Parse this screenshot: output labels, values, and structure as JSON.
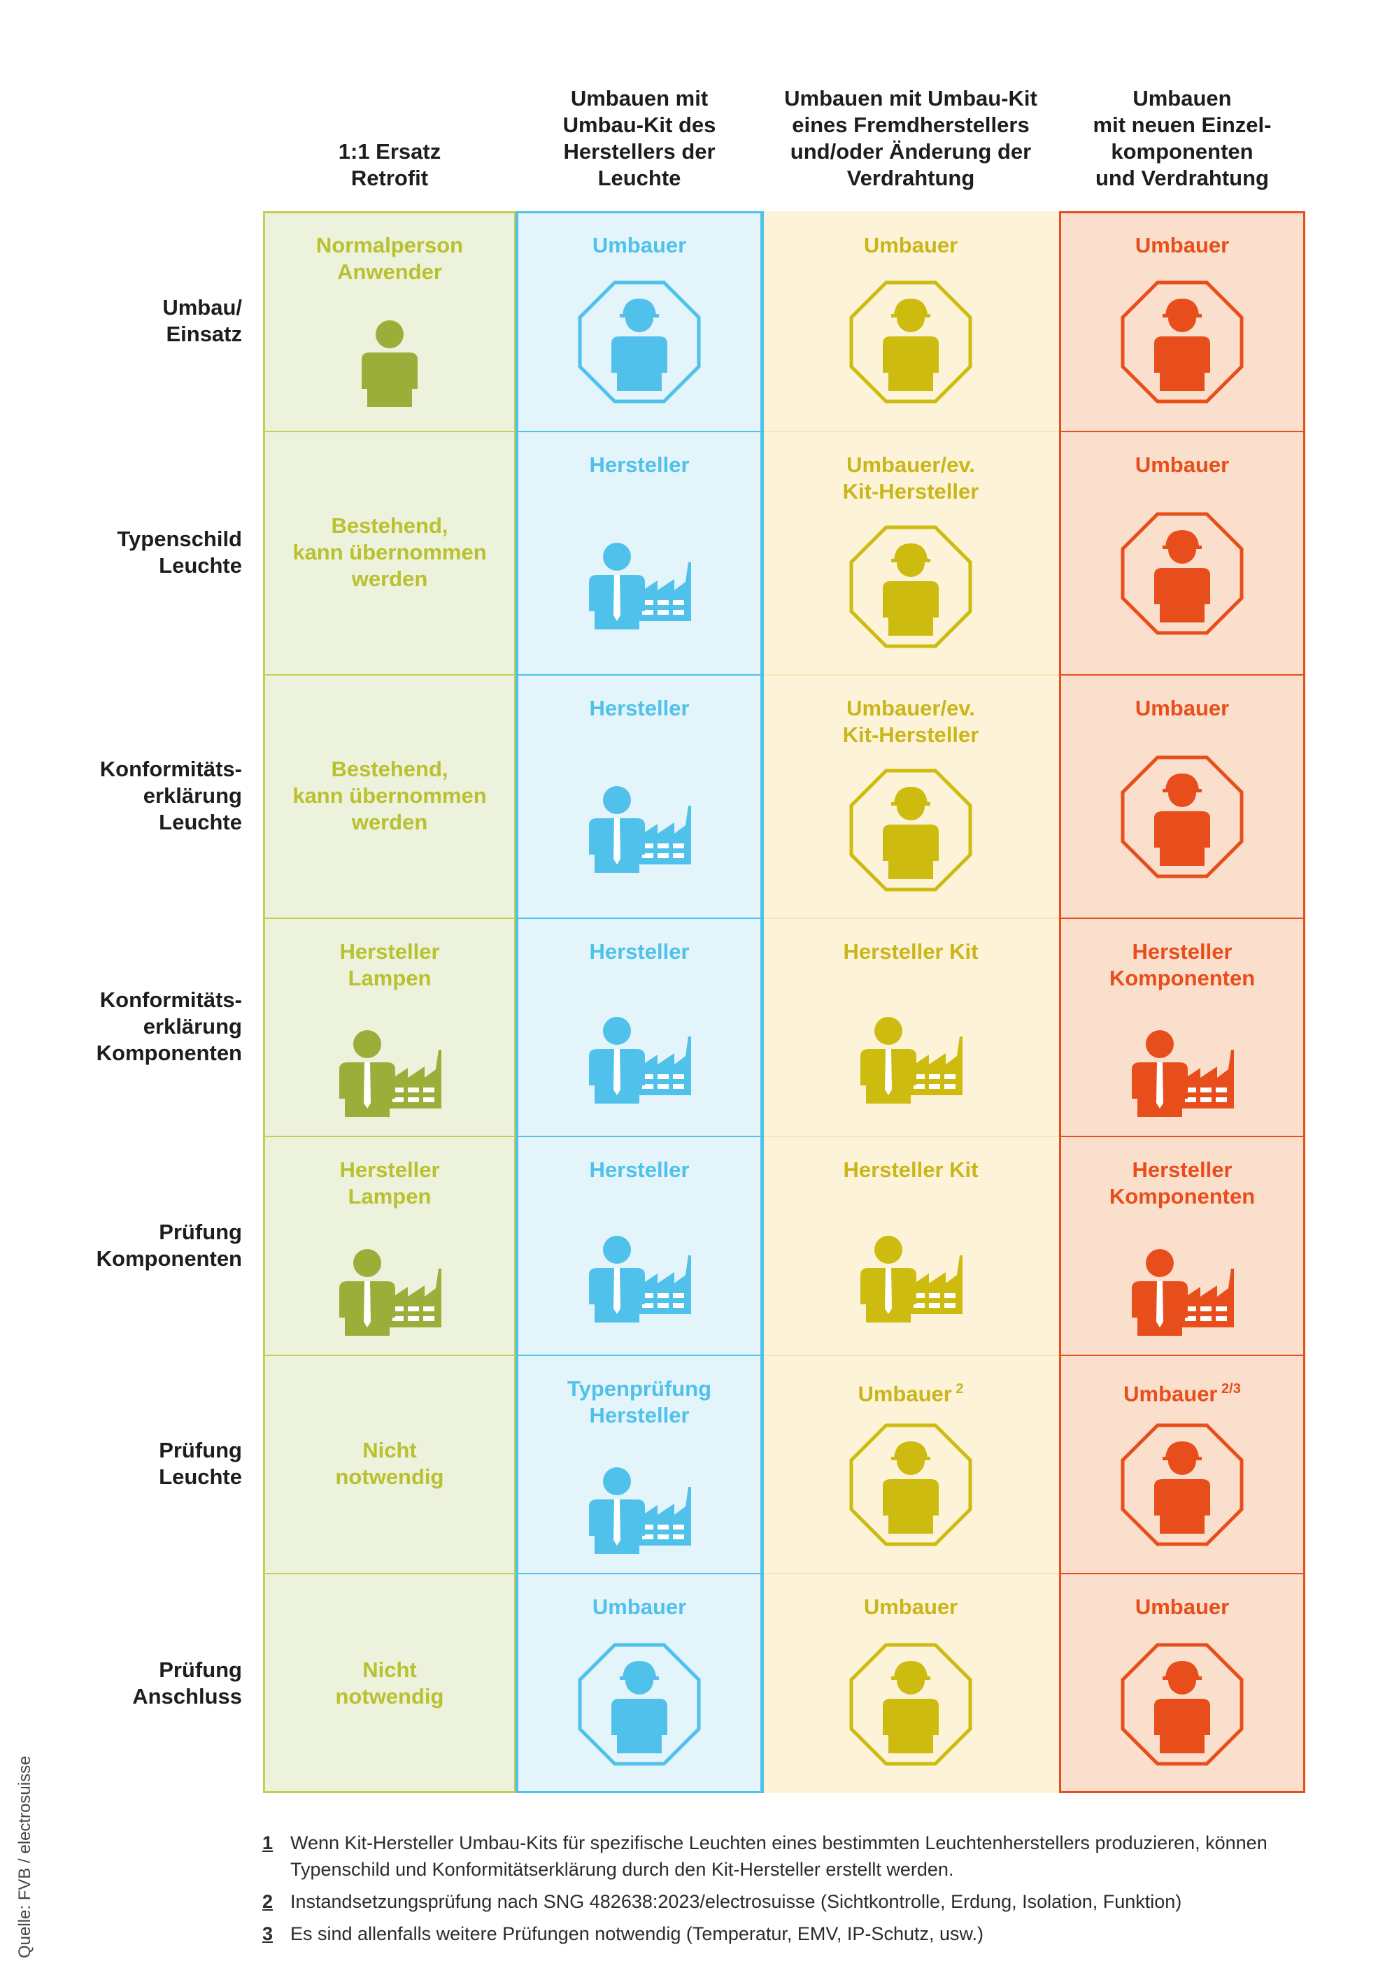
{
  "colors": {
    "green": "#b9c12f",
    "green_bg": "#ecf2dc",
    "green_border": "#c7cc55",
    "green_icon": "#9cae3a",
    "blue": "#4fc1ea",
    "blue_bg": "#e3f4fb",
    "yellow": "#cdbb10",
    "yellow_text": "#c9b61a",
    "yellow_bg": "#fdf3d8",
    "orange": "#e84e1b",
    "orange_bg": "#fbdfcd"
  },
  "columns": [
    {
      "label": "1:1 Ersatz\nRetrofit"
    },
    {
      "label": "Umbauen mit\nUmbau-Kit des\nHerstellers der\nLeuchte"
    },
    {
      "label": "Umbauen mit Umbau-Kit\neines Fremdherstellers\nund/oder Änderung der\nVerdrahtung"
    },
    {
      "label": "Umbauen\nmit neuen Einzel-\nkomponenten\nund Verdrahtung"
    }
  ],
  "rows": [
    {
      "label": "Umbau/\nEinsatz",
      "cells": [
        {
          "text": "Normalperson\nAnwender",
          "sup": "",
          "icon": "person-icon"
        },
        {
          "text": "Umbauer",
          "sup": "",
          "icon": "worker-octagon-icon"
        },
        {
          "text": "Umbauer",
          "sup": "",
          "icon": "worker-octagon-icon"
        },
        {
          "text": "Umbauer",
          "sup": "",
          "icon": "worker-octagon-icon"
        }
      ]
    },
    {
      "label": "Typenschild\nLeuchte",
      "cells": [
        {
          "text": "Bestehend,\nkann übernommen\nwerden",
          "sup": "",
          "icon": "none"
        },
        {
          "text": "Hersteller",
          "sup": "",
          "icon": "manufacturer-icon"
        },
        {
          "text": "Umbauer/ev.\nKit-Hersteller",
          "sup": "",
          "icon": "worker-octagon-icon"
        },
        {
          "text": "Umbauer",
          "sup": "",
          "icon": "worker-octagon-icon"
        }
      ]
    },
    {
      "label": "Konformitäts-\nerklärung\nLeuchte",
      "cells": [
        {
          "text": "Bestehend,\nkann übernommen\nwerden",
          "sup": "",
          "icon": "none"
        },
        {
          "text": "Hersteller",
          "sup": "",
          "icon": "manufacturer-icon"
        },
        {
          "text": "Umbauer/ev.\nKit-Hersteller",
          "sup": "",
          "icon": "worker-octagon-icon"
        },
        {
          "text": "Umbauer",
          "sup": "",
          "icon": "worker-octagon-icon"
        }
      ]
    },
    {
      "label": "Konformitäts-\nerklärung\nKomponenten",
      "cells": [
        {
          "text": "Hersteller\nLampen",
          "sup": "",
          "icon": "manufacturer-icon"
        },
        {
          "text": "Hersteller",
          "sup": "",
          "icon": "manufacturer-icon"
        },
        {
          "text": "Hersteller Kit",
          "sup": "",
          "icon": "manufacturer-icon"
        },
        {
          "text": "Hersteller\nKomponenten",
          "sup": "",
          "icon": "manufacturer-icon"
        }
      ]
    },
    {
      "label": "Prüfung\nKomponenten",
      "cells": [
        {
          "text": "Hersteller\nLampen",
          "sup": "",
          "icon": "manufacturer-icon"
        },
        {
          "text": "Hersteller",
          "sup": "",
          "icon": "manufacturer-icon"
        },
        {
          "text": "Hersteller Kit",
          "sup": "",
          "icon": "manufacturer-icon"
        },
        {
          "text": "Hersteller\nKomponenten",
          "sup": "",
          "icon": "manufacturer-icon"
        }
      ]
    },
    {
      "label": "Prüfung\nLeuchte",
      "cells": [
        {
          "text": "Nicht\nnotwendig",
          "sup": "",
          "icon": "none"
        },
        {
          "text": "Typenprüfung\nHersteller",
          "sup": "",
          "icon": "manufacturer-icon"
        },
        {
          "text": "Umbauer",
          "sup": "2",
          "icon": "worker-octagon-icon"
        },
        {
          "text": "Umbauer",
          "sup": "2/3",
          "icon": "worker-octagon-icon"
        }
      ]
    },
    {
      "label": "Prüfung\nAnschluss",
      "cells": [
        {
          "text": "Nicht\nnotwendig",
          "sup": "",
          "icon": "none"
        },
        {
          "text": "Umbauer",
          "sup": "",
          "icon": "worker-octagon-icon"
        },
        {
          "text": "Umbauer",
          "sup": "",
          "icon": "worker-octagon-icon"
        },
        {
          "text": "Umbauer",
          "sup": "",
          "icon": "worker-octagon-icon"
        }
      ]
    }
  ],
  "footnotes": [
    {
      "num": "1",
      "text": "Wenn Kit-Hersteller Umbau-Kits für spezifische Leuchten eines bestimmten Leuchtenherstellers produzieren, können Typenschild und Konformitätserklärung durch den Kit-Hersteller erstellt werden."
    },
    {
      "num": "2",
      "text": "Instandsetzungsprüfung nach SNG 482638:2023/electrosuisse (Sichtkontrolle, Erdung, Isolation, Funktion)"
    },
    {
      "num": "3",
      "text": "Es sind allenfalls weitere Prüfungen notwendig (Temperatur, EMV, IP-Schutz, usw.)"
    }
  ],
  "source": "Quelle: FVB / electrosuisse"
}
